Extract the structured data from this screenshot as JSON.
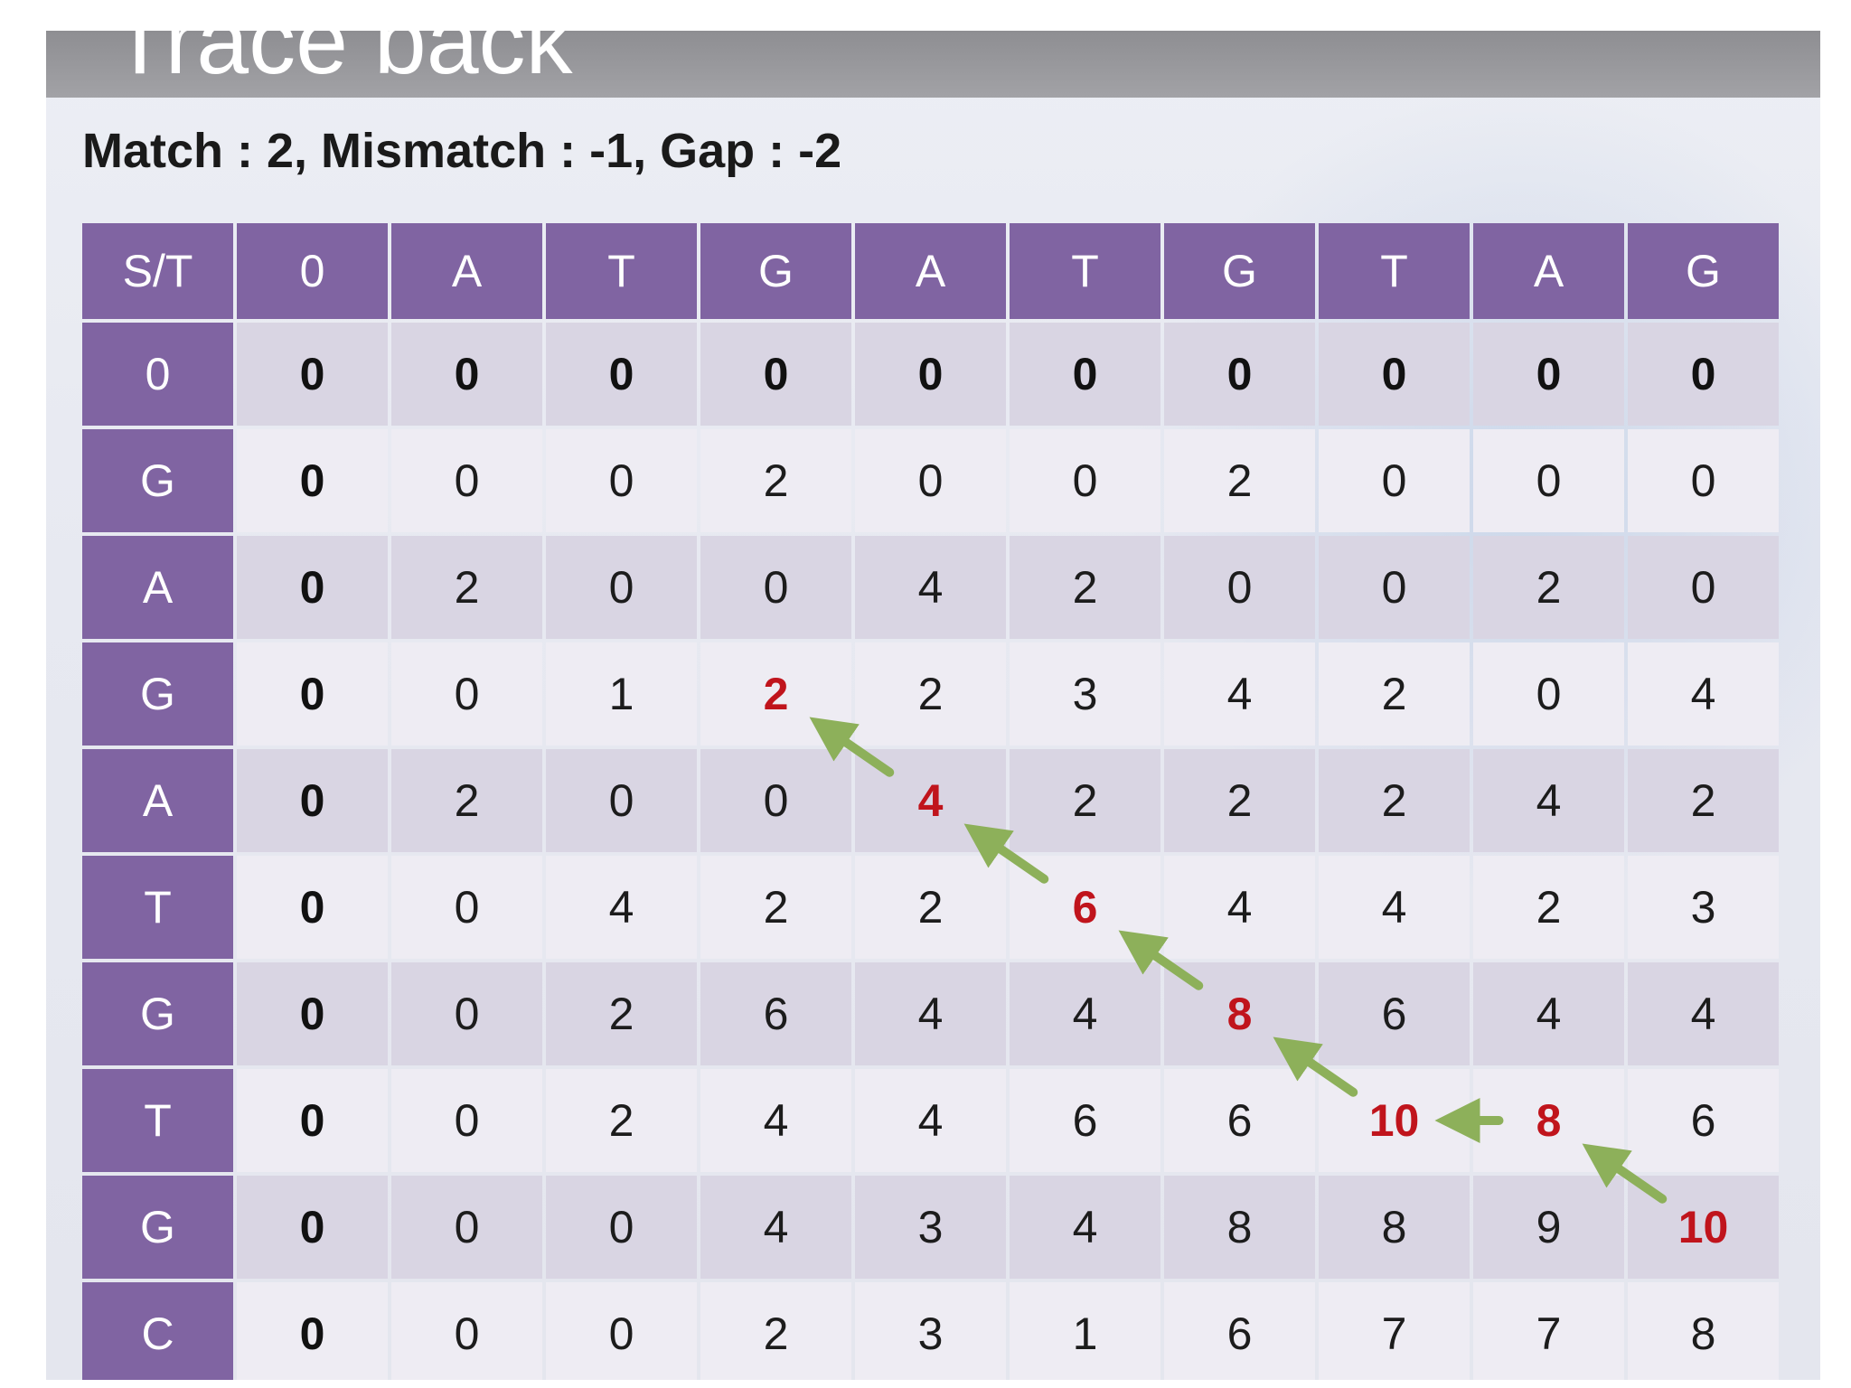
{
  "slide": {
    "title": "Trace back",
    "scoring": "Match : 2, Mismatch : -1, Gap : -2"
  },
  "table": {
    "corner": "S/T",
    "columns": [
      "0",
      "A",
      "T",
      "G",
      "A",
      "T",
      "G",
      "T",
      "A",
      "G"
    ],
    "rows": [
      {
        "label": "0",
        "values": [
          "0",
          "0",
          "0",
          "0",
          "0",
          "0",
          "0",
          "0",
          "0",
          "0"
        ]
      },
      {
        "label": "G",
        "values": [
          "0",
          "0",
          "0",
          "2",
          "0",
          "0",
          "2",
          "0",
          "0",
          "0"
        ]
      },
      {
        "label": "A",
        "values": [
          "0",
          "2",
          "0",
          "0",
          "4",
          "2",
          "0",
          "0",
          "2",
          "0"
        ]
      },
      {
        "label": "G",
        "values": [
          "0",
          "0",
          "1",
          "2",
          "2",
          "3",
          "4",
          "2",
          "0",
          "4"
        ]
      },
      {
        "label": "A",
        "values": [
          "0",
          "2",
          "0",
          "0",
          "4",
          "2",
          "2",
          "2",
          "4",
          "2"
        ]
      },
      {
        "label": "T",
        "values": [
          "0",
          "0",
          "4",
          "2",
          "2",
          "6",
          "4",
          "4",
          "2",
          "3"
        ]
      },
      {
        "label": "G",
        "values": [
          "0",
          "0",
          "2",
          "6",
          "4",
          "4",
          "8",
          "6",
          "4",
          "4"
        ]
      },
      {
        "label": "T",
        "values": [
          "0",
          "0",
          "2",
          "4",
          "4",
          "6",
          "6",
          "10",
          "8",
          "6"
        ]
      },
      {
        "label": "G",
        "values": [
          "0",
          "0",
          "0",
          "4",
          "3",
          "4",
          "8",
          "8",
          "9",
          "10"
        ]
      },
      {
        "label": "C",
        "values": [
          "0",
          "0",
          "0",
          "2",
          "3",
          "1",
          "6",
          "7",
          "7",
          "8"
        ]
      }
    ],
    "traceback_path": [
      [
        3,
        3
      ],
      [
        4,
        4
      ],
      [
        5,
        5
      ],
      [
        6,
        6
      ],
      [
        7,
        7
      ],
      [
        7,
        8
      ],
      [
        8,
        9
      ]
    ],
    "colors": {
      "header_bg": "#8064a2",
      "trace_text": "#c0141c",
      "arrow": "#8db05a"
    }
  }
}
